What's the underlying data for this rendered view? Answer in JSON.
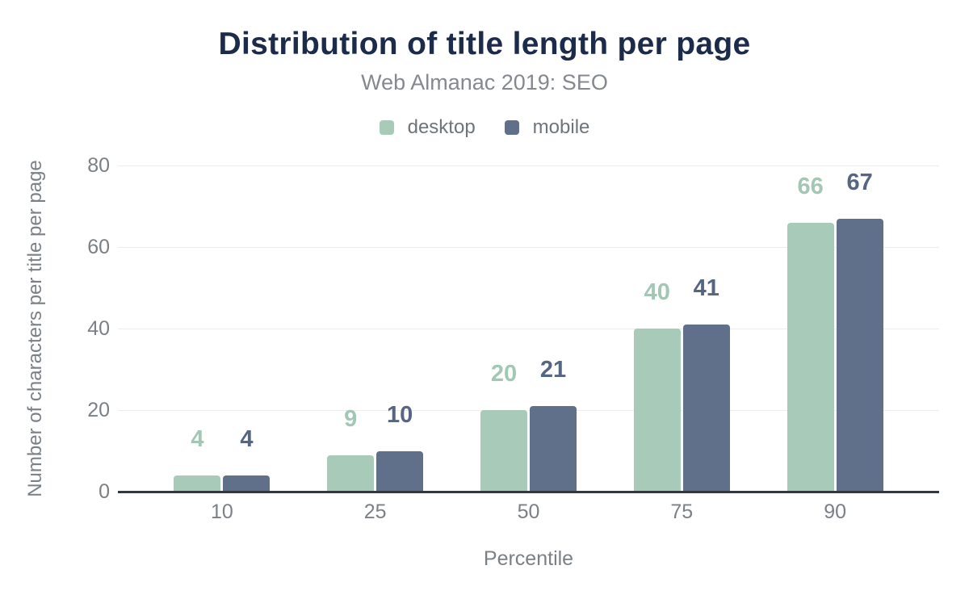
{
  "chart_data": {
    "type": "bar",
    "title": "Distribution of title length per page",
    "subtitle": "Web Almanac 2019: SEO",
    "xlabel": "Percentile",
    "ylabel": "Number of characters per title per page",
    "categories": [
      "10",
      "25",
      "50",
      "75",
      "90"
    ],
    "series": [
      {
        "name": "desktop",
        "color": "#a8cab8",
        "label_color": "#a3c7b5",
        "values": [
          4,
          9,
          20,
          40,
          66
        ]
      },
      {
        "name": "mobile",
        "color": "#60708b",
        "label_color": "#566581",
        "values": [
          4,
          10,
          21,
          41,
          67
        ]
      }
    ],
    "ylim": [
      0,
      80
    ],
    "yticks": [
      0,
      20,
      40,
      60,
      80
    ],
    "grid": true,
    "legend_position": "top",
    "annotations_shown": true
  },
  "colors": {
    "title_text": "#1c2b4a",
    "subtitle_text": "#85898f",
    "legend_text": "#6f747b",
    "axis_text": "#7b8086",
    "gridline": "#ededed",
    "baseline": "#32383e",
    "background": "#ffffff"
  }
}
